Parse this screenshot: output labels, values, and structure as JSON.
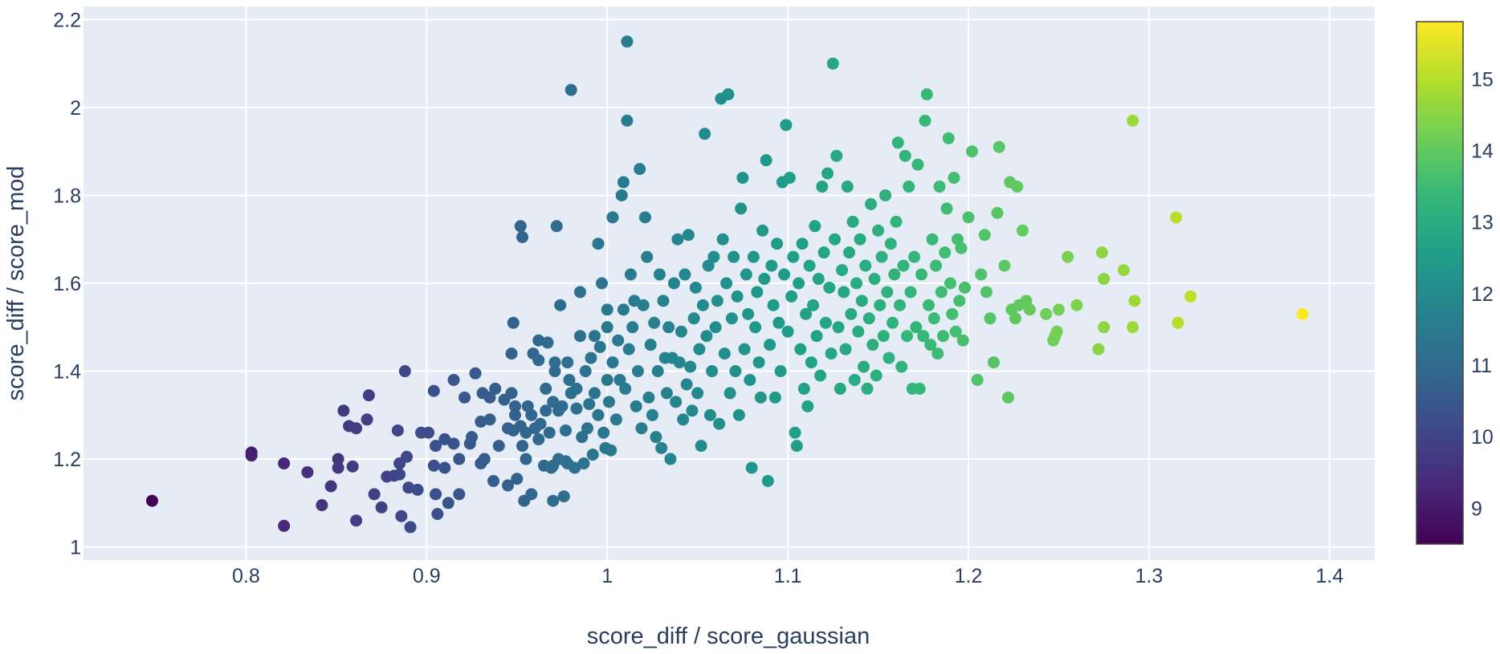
{
  "chart_data": {
    "type": "scatter",
    "xlabel": "score_diff / score_gaussian",
    "ylabel": "score_diff / score_mod",
    "xlim": [
      0.71,
      1.425
    ],
    "ylim": [
      0.97,
      2.23
    ],
    "grid": true,
    "colorscale": "viridis",
    "color_range": [
      8.5,
      15.8
    ],
    "colors": {
      "plot_bg": "#e5ecf6",
      "grid": "#ffffff",
      "text": "#2a3f5f"
    },
    "x_ticks": [
      {
        "value": 0.8,
        "label": "0.8"
      },
      {
        "value": 0.9,
        "label": "0.9"
      },
      {
        "value": 1.0,
        "label": "1"
      },
      {
        "value": 1.1,
        "label": "1.1"
      },
      {
        "value": 1.2,
        "label": "1.2"
      },
      {
        "value": 1.3,
        "label": "1.3"
      },
      {
        "value": 1.4,
        "label": "1.4"
      }
    ],
    "y_ticks": [
      {
        "value": 1.0,
        "label": "1"
      },
      {
        "value": 1.2,
        "label": "1.2"
      },
      {
        "value": 1.4,
        "label": "1.4"
      },
      {
        "value": 1.6,
        "label": "1.6"
      },
      {
        "value": 1.8,
        "label": "1.8"
      },
      {
        "value": 2.0,
        "label": "2"
      },
      {
        "value": 2.2,
        "label": "2.2"
      }
    ],
    "colorbar_ticks": [
      {
        "value": 9,
        "label": "9"
      },
      {
        "value": 10,
        "label": "10"
      },
      {
        "value": 11,
        "label": "11"
      },
      {
        "value": 12,
        "label": "12"
      },
      {
        "value": 13,
        "label": "13"
      },
      {
        "value": 14,
        "label": "14"
      },
      {
        "value": 15,
        "label": "15"
      }
    ],
    "points": [
      [
        0.748,
        1.105
      ],
      [
        0.803,
        1.215
      ],
      [
        0.803,
        1.208
      ],
      [
        0.821,
        1.19
      ],
      [
        0.821,
        1.048
      ],
      [
        0.834,
        1.17
      ],
      [
        0.842,
        1.095
      ],
      [
        0.847,
        1.138
      ],
      [
        0.851,
        1.2
      ],
      [
        0.851,
        1.18
      ],
      [
        0.854,
        1.31
      ],
      [
        0.857,
        1.275
      ],
      [
        0.859,
        1.183
      ],
      [
        0.861,
        1.06
      ],
      [
        0.861,
        1.27
      ],
      [
        0.867,
        1.29
      ],
      [
        0.868,
        1.345
      ],
      [
        0.871,
        1.12
      ],
      [
        0.875,
        1.09
      ],
      [
        0.878,
        1.16
      ],
      [
        0.882,
        1.162
      ],
      [
        0.884,
        1.265
      ],
      [
        0.885,
        1.19
      ],
      [
        0.885,
        1.165
      ],
      [
        0.886,
        1.07
      ],
      [
        0.888,
        1.4
      ],
      [
        0.889,
        1.205
      ],
      [
        0.89,
        1.135
      ],
      [
        0.891,
        1.045
      ],
      [
        0.895,
        1.13
      ],
      [
        0.897,
        1.26
      ],
      [
        0.901,
        1.26
      ],
      [
        0.904,
        1.185
      ],
      [
        0.904,
        1.355
      ],
      [
        0.905,
        1.23
      ],
      [
        0.905,
        1.12
      ],
      [
        0.906,
        1.075
      ],
      [
        0.91,
        1.18
      ],
      [
        0.91,
        1.245
      ],
      [
        0.912,
        1.1
      ],
      [
        0.915,
        1.235
      ],
      [
        0.915,
        1.38
      ],
      [
        0.918,
        1.12
      ],
      [
        0.918,
        1.2
      ],
      [
        0.921,
        1.34
      ],
      [
        0.924,
        1.235
      ],
      [
        0.925,
        1.25
      ],
      [
        0.927,
        1.395
      ],
      [
        0.93,
        1.285
      ],
      [
        0.93,
        1.19
      ],
      [
        0.931,
        1.35
      ],
      [
        0.932,
        1.2
      ],
      [
        0.935,
        1.34
      ],
      [
        0.935,
        1.29
      ],
      [
        0.937,
        1.15
      ],
      [
        0.938,
        1.36
      ],
      [
        0.94,
        1.23
      ],
      [
        0.943,
        1.335
      ],
      [
        0.945,
        1.27
      ],
      [
        0.945,
        1.14
      ],
      [
        0.947,
        1.35
      ],
      [
        0.947,
        1.44
      ],
      [
        0.948,
        1.51
      ],
      [
        0.948,
        1.265
      ],
      [
        0.949,
        1.32
      ],
      [
        0.949,
        1.3
      ],
      [
        0.95,
        1.155
      ],
      [
        0.952,
        1.275
      ],
      [
        0.952,
        1.73
      ],
      [
        0.953,
        1.705
      ],
      [
        0.953,
        1.23
      ],
      [
        0.954,
        1.105
      ],
      [
        0.955,
        1.2
      ],
      [
        0.955,
        1.26
      ],
      [
        0.956,
        1.32
      ],
      [
        0.958,
        1.12
      ],
      [
        0.958,
        1.3
      ],
      [
        0.959,
        1.44
      ],
      [
        0.96,
        1.27
      ],
      [
        0.962,
        1.425
      ],
      [
        0.962,
        1.47
      ],
      [
        0.962,
        1.245
      ],
      [
        0.963,
        1.28
      ],
      [
        0.965,
        1.185
      ],
      [
        0.966,
        1.36
      ],
      [
        0.966,
        1.31
      ],
      [
        0.967,
        1.465
      ],
      [
        0.968,
        1.26
      ],
      [
        0.969,
        1.18
      ],
      [
        0.97,
        1.185
      ],
      [
        0.97,
        1.33
      ],
      [
        0.97,
        1.105
      ],
      [
        0.971,
        1.4
      ],
      [
        0.971,
        1.42
      ],
      [
        0.972,
        1.73
      ],
      [
        0.973,
        1.31
      ],
      [
        0.973,
        1.2
      ],
      [
        0.974,
        1.55
      ],
      [
        0.975,
        1.32
      ],
      [
        0.976,
        1.115
      ],
      [
        0.977,
        1.265
      ],
      [
        0.977,
        1.195
      ],
      [
        0.978,
        1.42
      ],
      [
        0.978,
        1.19
      ],
      [
        0.979,
        1.38
      ],
      [
        0.98,
        2.04
      ],
      [
        0.98,
        1.35
      ],
      [
        0.982,
        1.18
      ],
      [
        0.983,
        1.36
      ],
      [
        0.983,
        1.315
      ],
      [
        0.985,
        1.58
      ],
      [
        0.985,
        1.48
      ],
      [
        0.986,
        1.25
      ],
      [
        0.987,
        1.19
      ],
      [
        0.988,
        1.4
      ],
      [
        0.989,
        1.27
      ],
      [
        0.99,
        1.325
      ],
      [
        0.991,
        1.43
      ],
      [
        0.992,
        1.21
      ],
      [
        0.993,
        1.48
      ],
      [
        0.993,
        1.35
      ],
      [
        0.995,
        1.3
      ],
      [
        0.995,
        1.69
      ],
      [
        0.996,
        1.455
      ],
      [
        0.997,
        1.6
      ],
      [
        0.998,
        1.26
      ],
      [
        0.999,
        1.225
      ],
      [
        1.0,
        1.5
      ],
      [
        1.0,
        1.38
      ],
      [
        1.0,
        1.54
      ],
      [
        1.001,
        1.33
      ],
      [
        1.002,
        1.22
      ],
      [
        1.003,
        1.75
      ],
      [
        1.003,
        1.42
      ],
      [
        1.005,
        1.29
      ],
      [
        1.006,
        1.47
      ],
      [
        1.007,
        1.38
      ],
      [
        1.008,
        1.8
      ],
      [
        1.009,
        1.83
      ],
      [
        1.009,
        1.54
      ],
      [
        1.01,
        1.36
      ],
      [
        1.011,
        2.15
      ],
      [
        1.011,
        1.97
      ],
      [
        1.012,
        1.45
      ],
      [
        1.013,
        1.62
      ],
      [
        1.014,
        1.5
      ],
      [
        1.015,
        1.56
      ],
      [
        1.016,
        1.32
      ],
      [
        1.017,
        1.4
      ],
      [
        1.018,
        1.86
      ],
      [
        1.019,
        1.27
      ],
      [
        1.02,
        1.55
      ],
      [
        1.021,
        1.75
      ],
      [
        1.022,
        1.66
      ],
      [
        1.023,
        1.34
      ],
      [
        1.024,
        1.46
      ],
      [
        1.025,
        1.3
      ],
      [
        1.026,
        1.51
      ],
      [
        1.027,
        1.25
      ],
      [
        1.028,
        1.4
      ],
      [
        1.029,
        1.62
      ],
      [
        1.03,
        1.225
      ],
      [
        1.031,
        1.56
      ],
      [
        1.032,
        1.43
      ],
      [
        1.033,
        1.35
      ],
      [
        1.034,
        1.5
      ],
      [
        1.035,
        1.2
      ],
      [
        1.036,
        1.43
      ],
      [
        1.037,
        1.6
      ],
      [
        1.038,
        1.33
      ],
      [
        1.039,
        1.7
      ],
      [
        1.04,
        1.42
      ],
      [
        1.041,
        1.49
      ],
      [
        1.042,
        1.29
      ],
      [
        1.043,
        1.62
      ],
      [
        1.044,
        1.37
      ],
      [
        1.045,
        1.71
      ],
      [
        1.046,
        1.41
      ],
      [
        1.047,
        1.31
      ],
      [
        1.048,
        1.52
      ],
      [
        1.049,
        1.59
      ],
      [
        1.05,
        1.35
      ],
      [
        1.051,
        1.45
      ],
      [
        1.052,
        1.23
      ],
      [
        1.053,
        1.55
      ],
      [
        1.054,
        1.94
      ],
      [
        1.055,
        1.48
      ],
      [
        1.056,
        1.64
      ],
      [
        1.057,
        1.3
      ],
      [
        1.058,
        1.4
      ],
      [
        1.059,
        1.66
      ],
      [
        1.06,
        1.5
      ],
      [
        1.061,
        1.56
      ],
      [
        1.062,
        1.28
      ],
      [
        1.063,
        2.02
      ],
      [
        1.064,
        1.7
      ],
      [
        1.065,
        1.44
      ],
      [
        1.066,
        1.6
      ],
      [
        1.067,
        2.03
      ],
      [
        1.068,
        1.35
      ],
      [
        1.069,
        1.52
      ],
      [
        1.07,
        1.66
      ],
      [
        1.071,
        1.4
      ],
      [
        1.072,
        1.57
      ],
      [
        1.073,
        1.3
      ],
      [
        1.074,
        1.77
      ],
      [
        1.075,
        1.84
      ],
      [
        1.076,
        1.45
      ],
      [
        1.077,
        1.62
      ],
      [
        1.078,
        1.53
      ],
      [
        1.079,
        1.38
      ],
      [
        1.08,
        1.18
      ],
      [
        1.081,
        1.66
      ],
      [
        1.082,
        1.5
      ],
      [
        1.083,
        1.58
      ],
      [
        1.084,
        1.42
      ],
      [
        1.085,
        1.34
      ],
      [
        1.086,
        1.72
      ],
      [
        1.087,
        1.61
      ],
      [
        1.088,
        1.88
      ],
      [
        1.089,
        1.15
      ],
      [
        1.09,
        1.46
      ],
      [
        1.091,
        1.64
      ],
      [
        1.092,
        1.55
      ],
      [
        1.093,
        1.34
      ],
      [
        1.094,
        1.69
      ],
      [
        1.095,
        1.51
      ],
      [
        1.096,
        1.4
      ],
      [
        1.097,
        1.83
      ],
      [
        1.098,
        1.62
      ],
      [
        1.099,
        1.96
      ],
      [
        1.1,
        1.49
      ],
      [
        1.101,
        1.84
      ],
      [
        1.102,
        1.57
      ],
      [
        1.103,
        1.66
      ],
      [
        1.104,
        1.26
      ],
      [
        1.105,
        1.23
      ],
      [
        1.106,
        1.6
      ],
      [
        1.107,
        1.45
      ],
      [
        1.108,
        1.69
      ],
      [
        1.109,
        1.36
      ],
      [
        1.11,
        1.53
      ],
      [
        1.111,
        1.32
      ],
      [
        1.112,
        1.64
      ],
      [
        1.113,
        1.42
      ],
      [
        1.114,
        1.55
      ],
      [
        1.115,
        1.73
      ],
      [
        1.116,
        1.48
      ],
      [
        1.117,
        1.61
      ],
      [
        1.118,
        1.39
      ],
      [
        1.119,
        1.82
      ],
      [
        1.12,
        1.67
      ],
      [
        1.121,
        1.51
      ],
      [
        1.122,
        1.85
      ],
      [
        1.123,
        1.59
      ],
      [
        1.124,
        1.44
      ],
      [
        1.125,
        2.1
      ],
      [
        1.126,
        1.7
      ],
      [
        1.127,
        1.89
      ],
      [
        1.128,
        1.5
      ],
      [
        1.129,
        1.36
      ],
      [
        1.13,
        1.63
      ],
      [
        1.131,
        1.58
      ],
      [
        1.132,
        1.45
      ],
      [
        1.133,
        1.82
      ],
      [
        1.134,
        1.67
      ],
      [
        1.135,
        1.53
      ],
      [
        1.136,
        1.74
      ],
      [
        1.137,
        1.38
      ],
      [
        1.138,
        1.6
      ],
      [
        1.139,
        1.49
      ],
      [
        1.14,
        1.7
      ],
      [
        1.141,
        1.56
      ],
      [
        1.142,
        1.41
      ],
      [
        1.143,
        1.64
      ],
      [
        1.144,
        1.36
      ],
      [
        1.145,
        1.52
      ],
      [
        1.146,
        1.78
      ],
      [
        1.147,
        1.46
      ],
      [
        1.148,
        1.61
      ],
      [
        1.149,
        1.39
      ],
      [
        1.15,
        1.72
      ],
      [
        1.151,
        1.55
      ],
      [
        1.152,
        1.66
      ],
      [
        1.153,
        1.48
      ],
      [
        1.154,
        1.8
      ],
      [
        1.155,
        1.58
      ],
      [
        1.156,
        1.43
      ],
      [
        1.157,
        1.69
      ],
      [
        1.158,
        1.51
      ],
      [
        1.159,
        1.62
      ],
      [
        1.16,
        1.74
      ],
      [
        1.161,
        1.92
      ],
      [
        1.162,
        1.55
      ],
      [
        1.163,
        1.41
      ],
      [
        1.164,
        1.64
      ],
      [
        1.165,
        1.89
      ],
      [
        1.166,
        1.48
      ],
      [
        1.167,
        1.82
      ],
      [
        1.168,
        1.58
      ],
      [
        1.169,
        1.36
      ],
      [
        1.17,
        1.66
      ],
      [
        1.171,
        1.5
      ],
      [
        1.172,
        1.87
      ],
      [
        1.173,
        1.36
      ],
      [
        1.174,
        1.62
      ],
      [
        1.175,
        1.48
      ],
      [
        1.176,
        1.97
      ],
      [
        1.177,
        2.03
      ],
      [
        1.178,
        1.55
      ],
      [
        1.179,
        1.46
      ],
      [
        1.18,
        1.7
      ],
      [
        1.181,
        1.52
      ],
      [
        1.182,
        1.64
      ],
      [
        1.183,
        1.44
      ],
      [
        1.184,
        1.82
      ],
      [
        1.185,
        1.58
      ],
      [
        1.186,
        1.48
      ],
      [
        1.187,
        1.67
      ],
      [
        1.188,
        1.77
      ],
      [
        1.189,
        1.93
      ],
      [
        1.19,
        1.6
      ],
      [
        1.191,
        1.53
      ],
      [
        1.192,
        1.84
      ],
      [
        1.193,
        1.49
      ],
      [
        1.194,
        1.7
      ],
      [
        1.195,
        1.56
      ],
      [
        1.196,
        1.68
      ],
      [
        1.197,
        1.47
      ],
      [
        1.198,
        1.59
      ],
      [
        1.2,
        1.75
      ],
      [
        1.202,
        1.9
      ],
      [
        1.205,
        1.38
      ],
      [
        1.207,
        1.62
      ],
      [
        1.209,
        1.71
      ],
      [
        1.21,
        1.58
      ],
      [
        1.212,
        1.52
      ],
      [
        1.214,
        1.42
      ],
      [
        1.216,
        1.76
      ],
      [
        1.217,
        1.91
      ],
      [
        1.22,
        1.64
      ],
      [
        1.222,
        1.34
      ],
      [
        1.223,
        1.83
      ],
      [
        1.224,
        1.54
      ],
      [
        1.226,
        1.52
      ],
      [
        1.227,
        1.82
      ],
      [
        1.228,
        1.55
      ],
      [
        1.23,
        1.72
      ],
      [
        1.232,
        1.56
      ],
      [
        1.234,
        1.54
      ],
      [
        1.243,
        1.53
      ],
      [
        1.247,
        1.47
      ],
      [
        1.248,
        1.48
      ],
      [
        1.249,
        1.49
      ],
      [
        1.25,
        1.54
      ],
      [
        1.255,
        1.66
      ],
      [
        1.26,
        1.55
      ],
      [
        1.272,
        1.45
      ],
      [
        1.274,
        1.67
      ],
      [
        1.275,
        1.61
      ],
      [
        1.275,
        1.5
      ],
      [
        1.286,
        1.63
      ],
      [
        1.291,
        1.97
      ],
      [
        1.291,
        1.5
      ],
      [
        1.292,
        1.56
      ],
      [
        1.315,
        1.75
      ],
      [
        1.316,
        1.51
      ],
      [
        1.323,
        1.57
      ],
      [
        1.385,
        1.53
      ]
    ]
  }
}
